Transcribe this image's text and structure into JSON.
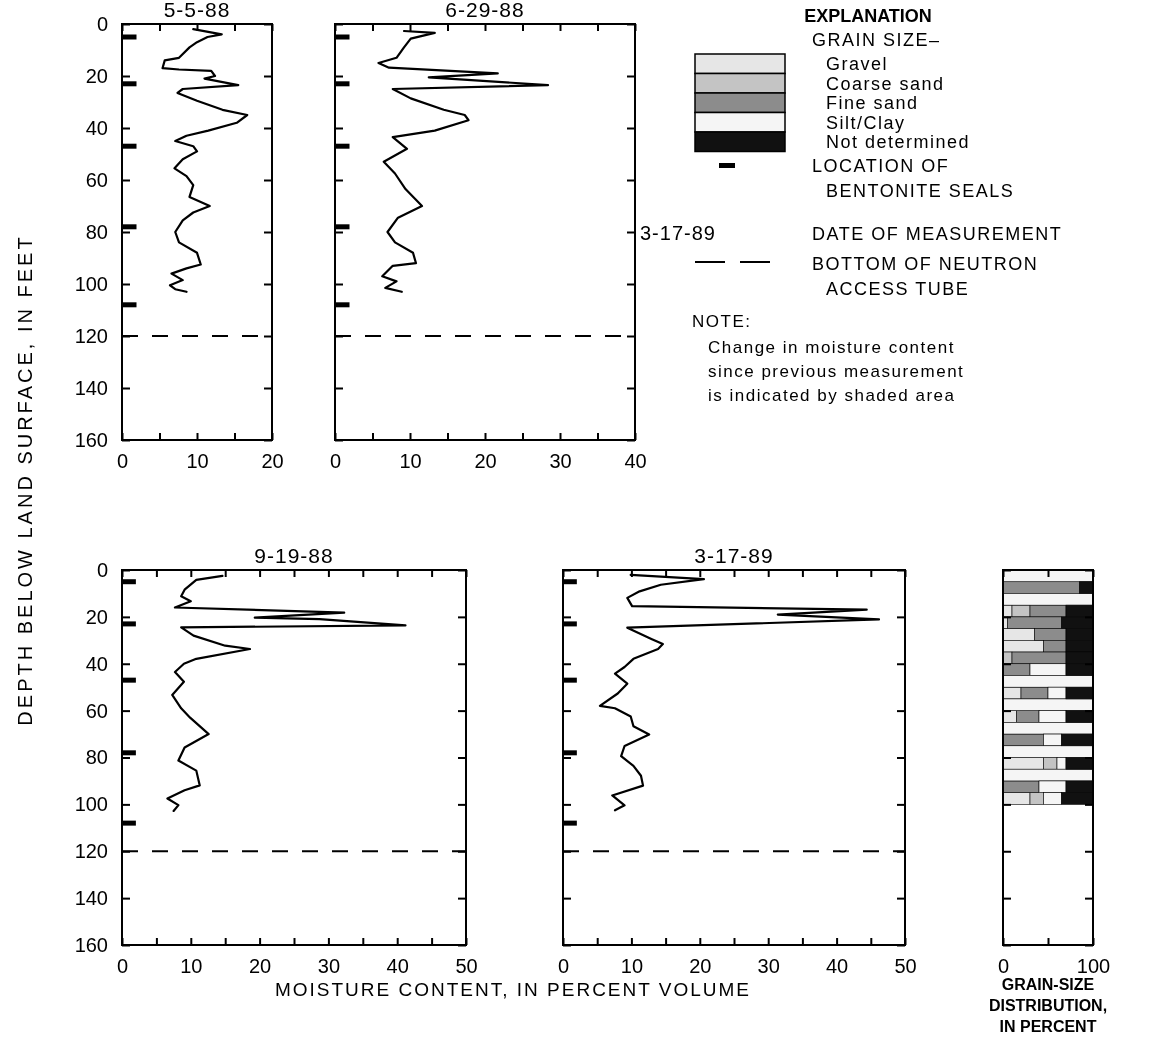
{
  "chart_data": [
    {
      "type": "line",
      "title": "5-5-88",
      "ylabel": "DEPTH BELOW LAND SURFACE, IN FEET",
      "xlim": [
        0,
        20
      ],
      "xticks": [
        0,
        {
          "value": 5,
          "label": null
        },
        10,
        {
          "value": 15,
          "label": null
        },
        20
      ],
      "ylim": [
        160,
        0
      ],
      "yticks": [
        0,
        20,
        40,
        60,
        80,
        100,
        120,
        140,
        160
      ],
      "ref_lines": [
        {
          "axis": "y",
          "value": 120,
          "line_style": "dashed",
          "color": "#000000"
        }
      ],
      "series": [
        {
          "type": "line",
          "color": "#000000",
          "x": [
            9.5,
            13.3,
            11.4,
            10,
            9,
            7.6,
            5.7,
            5.4,
            7.6,
            11.9,
            12.4,
            11,
            15.5,
            8.1,
            7.4,
            10,
            13.4,
            16.7,
            15.3,
            11.5,
            8.6,
            7.1,
            9.5,
            10,
            8.1,
            7,
            8.6,
            9.5,
            9,
            11.7,
            9.5,
            8.1,
            7.1,
            7.6,
            10,
            10.5,
            8.6,
            6.6,
            8.1,
            6.4,
            7.1,
            8.6
          ],
          "values": [
            2,
            4,
            5,
            7,
            9,
            13,
            14,
            17,
            17.5,
            18,
            20,
            21,
            23.5,
            25,
            26.5,
            29.5,
            33,
            35,
            38,
            41,
            43,
            45,
            47,
            49,
            52,
            55.5,
            58.5,
            62,
            66.5,
            70,
            72.5,
            75.5,
            80,
            84,
            88,
            92.5,
            94,
            96,
            98.5,
            100.5,
            102,
            103
          ]
        },
        {
          "type": "scatter",
          "color": "#000000",
          "x": [
            1,
            1,
            1,
            1,
            1
          ],
          "values": [
            5,
            23,
            47,
            78,
            108
          ]
        }
      ]
    },
    {
      "type": "line",
      "title": "6-29-88",
      "tick_labels": "x",
      "xlim": [
        0,
        40
      ],
      "xticks": [
        0,
        {
          "value": 5,
          "label": null
        },
        10,
        {
          "value": 15,
          "label": null
        },
        20,
        {
          "value": 25,
          "label": null
        },
        30,
        {
          "value": 35,
          "label": null
        },
        40
      ],
      "ylim": [
        160,
        0
      ],
      "yticks": [
        0,
        20,
        40,
        60,
        80,
        100,
        120,
        140,
        160
      ],
      "ref_lines": [
        {
          "axis": "y",
          "value": 120,
          "line_style": "dashed",
          "color": "#000000"
        }
      ],
      "series": [
        {
          "type": "line",
          "color": "#000000",
          "x": [
            9.2,
            13.3,
            10.1,
            9.2,
            8.2,
            5.8,
            7.2,
            21.7,
            12.5,
            28.4,
            7.7,
            10.1,
            14.5,
            17.3,
            17.8,
            13.3,
            7.7,
            9.6,
            6.5,
            8,
            9.4,
            11.6,
            8.4,
            7,
            8,
            10.4,
            10.8,
            7.7,
            6.3,
            8.2,
            6.7,
            8.9
          ],
          "values": [
            2.7,
            3.4,
            5.6,
            9,
            13,
            15,
            16.8,
            19,
            20.5,
            23.5,
            25,
            28.6,
            33,
            35,
            37,
            41,
            43.5,
            48,
            53,
            57.5,
            63.5,
            70,
            74.5,
            80,
            84,
            88,
            92,
            93,
            97,
            99,
            101.5,
            103
          ]
        },
        {
          "type": "scatter",
          "color": "#000000",
          "x": [
            1,
            1,
            1,
            1,
            1
          ],
          "values": [
            5,
            23,
            47,
            78,
            108
          ]
        }
      ]
    },
    {
      "type": "line",
      "title": "9-19-88",
      "xlabel": "MOISTURE CONTENT, IN PERCENT VOLUME",
      "xlim": [
        0,
        50
      ],
      "xticks": [
        0,
        {
          "value": 5,
          "label": null
        },
        10,
        {
          "value": 15,
          "label": null
        },
        20,
        {
          "value": 25,
          "label": null
        },
        30,
        {
          "value": 35,
          "label": null
        },
        40,
        {
          "value": 45,
          "label": null
        },
        50
      ],
      "ylim": [
        160,
        0
      ],
      "yticks": [
        0,
        20,
        40,
        60,
        80,
        100,
        120,
        140,
        160
      ],
      "ref_lines": [
        {
          "axis": "y",
          "value": 120,
          "line_style": "dashed",
          "color": "#000000"
        }
      ],
      "series": [
        {
          "type": "line",
          "color": "#000000",
          "x": [
            14.6,
            10.8,
            9.1,
            8.6,
            10,
            7.7,
            32.3,
            19.3,
            28.7,
            41.2,
            8.6,
            10.4,
            15,
            18.6,
            10.8,
            9,
            7.7,
            9,
            7.3,
            8.6,
            9.9,
            12.6,
            9.1,
            8.2,
            10.8,
            11.3,
            9.1,
            6.6,
            8.2,
            7.5
          ],
          "values": [
            2.5,
            4.2,
            8.4,
            11.2,
            13.3,
            16,
            18.2,
            20.3,
            21,
            23.6,
            24.5,
            28,
            32.3,
            33.7,
            37.9,
            40,
            43.5,
            47.7,
            53.3,
            59,
            63,
            70,
            75.7,
            81.3,
            85.6,
            91.9,
            94,
            97.5,
            100.3,
            102.8
          ]
        },
        {
          "type": "scatter",
          "color": "#000000",
          "x": [
            1,
            1,
            1,
            1,
            1
          ],
          "values": [
            5,
            23,
            47,
            78,
            108
          ]
        }
      ]
    },
    {
      "type": "line",
      "title": "3-17-89",
      "tick_labels": "x",
      "xlim": [
        0,
        50
      ],
      "xticks": [
        0,
        {
          "value": 5,
          "label": null
        },
        10,
        {
          "value": 15,
          "label": null
        },
        20,
        {
          "value": 25,
          "label": null
        },
        30,
        {
          "value": 35,
          "label": null
        },
        40,
        {
          "value": 45,
          "label": null
        },
        50
      ],
      "ylim": [
        160,
        0
      ],
      "yticks": [
        0,
        20,
        40,
        60,
        80,
        100,
        120,
        140,
        160
      ],
      "ref_lines": [
        {
          "axis": "y",
          "value": 120,
          "line_style": "dashed",
          "color": "#000000"
        }
      ],
      "series": [
        {
          "type": "line",
          "color": "#000000",
          "x": [
            9.9,
            20.6,
            14.3,
            11.2,
            9.4,
            10.1,
            44.4,
            31.4,
            46.2,
            9.4,
            13,
            14.6,
            13.9,
            10.3,
            9,
            7.6,
            9.4,
            8,
            5.4,
            7.6,
            9.9,
            10.3,
            12.6,
            9,
            8.5,
            10.3,
            11.4,
            11.7,
            7.2,
            9,
            7.6
          ],
          "values": [
            2.1,
            3.9,
            6.3,
            9.1,
            11.9,
            15.4,
            16.9,
            19,
            21.1,
            24.6,
            29.5,
            31.6,
            33.7,
            37.9,
            41.4,
            44.2,
            48.5,
            52.7,
            58,
            59,
            62.5,
            66.7,
            70.2,
            75.1,
            79.4,
            83.6,
            87.8,
            92,
            96.2,
            100.4,
            102.5
          ]
        },
        {
          "type": "scatter",
          "color": "#000000",
          "x": [
            1,
            1,
            1,
            1,
            1
          ],
          "values": [
            5,
            23,
            47,
            78,
            108
          ]
        }
      ]
    },
    {
      "type": "bar",
      "orientation": "horizontal",
      "stacked": true,
      "xlabel": "GRAIN-SIZE DISTRIBUTION, IN PERCENT",
      "legend_title": "GRAIN SIZE–",
      "legend": "top left",
      "tick_labels": "x",
      "xlim": [
        0,
        100
      ],
      "xticks": [
        0,
        {
          "value": 50,
          "label": null
        },
        100
      ],
      "x": [
        2.5,
        7.5,
        12.5,
        17.5,
        22.5,
        27.5,
        32.5,
        37.5,
        42.5,
        47.5,
        52.5,
        57.5,
        62.5,
        67.5,
        72.5,
        77.5,
        82.5,
        87.5,
        92.5,
        97.5
      ],
      "ylim": [
        160,
        0
      ],
      "yticks": [
        {
          "value": 0,
          "label": null
        },
        {
          "value": 20,
          "label": null
        },
        {
          "value": 40,
          "label": null
        },
        {
          "value": 60,
          "label": null
        },
        {
          "value": 80,
          "label": null
        },
        {
          "value": 100,
          "label": null
        },
        {
          "value": 120,
          "label": null
        },
        {
          "value": 140,
          "label": null
        },
        {
          "value": 160,
          "label": null
        }
      ],
      "series": [
        {
          "name": "Gravel",
          "color": "#e6e6e6",
          "values": [
            0,
            0,
            0,
            10,
            5,
            35,
            45,
            0,
            0,
            0,
            20,
            0,
            15,
            0,
            0,
            0,
            45,
            0,
            0,
            30
          ]
        },
        {
          "name": "Coarse sand",
          "color": "#c4c4c4",
          "values": [
            0,
            0,
            0,
            20,
            0,
            0,
            0,
            10,
            0,
            0,
            0,
            0,
            0,
            0,
            0,
            0,
            15,
            0,
            0,
            15
          ]
        },
        {
          "name": "Fine sand",
          "color": "#8c8c8c",
          "values": [
            0,
            85,
            0,
            40,
            60,
            35,
            25,
            60,
            30,
            0,
            30,
            0,
            25,
            0,
            45,
            0,
            0,
            0,
            40,
            0
          ]
        },
        {
          "name": "Silt/Clay",
          "color": "#f5f5f5",
          "values": [
            100,
            0,
            100,
            0,
            0,
            0,
            0,
            0,
            40,
            100,
            20,
            100,
            30,
            100,
            20,
            100,
            10,
            100,
            30,
            20
          ]
        },
        {
          "name": "Not determined",
          "color": "#111111",
          "values": [
            0,
            15,
            0,
            30,
            35,
            30,
            30,
            30,
            30,
            0,
            30,
            0,
            30,
            0,
            35,
            0,
            30,
            0,
            30,
            35
          ]
        }
      ]
    },
    {
      "type": "other",
      "title": "EXPLANATION",
      "annotations": [
        "LOCATION OF\nBENTONITE SEALS",
        "3-17-89",
        "DATE OF MEASUREMENT",
        "BOTTOM OF NEUTRON\nACCESS TUBE",
        "NOTE:",
        "Change in moisture content\nsince previous measurement\nis indicated by shaded area"
      ]
    }
  ]
}
